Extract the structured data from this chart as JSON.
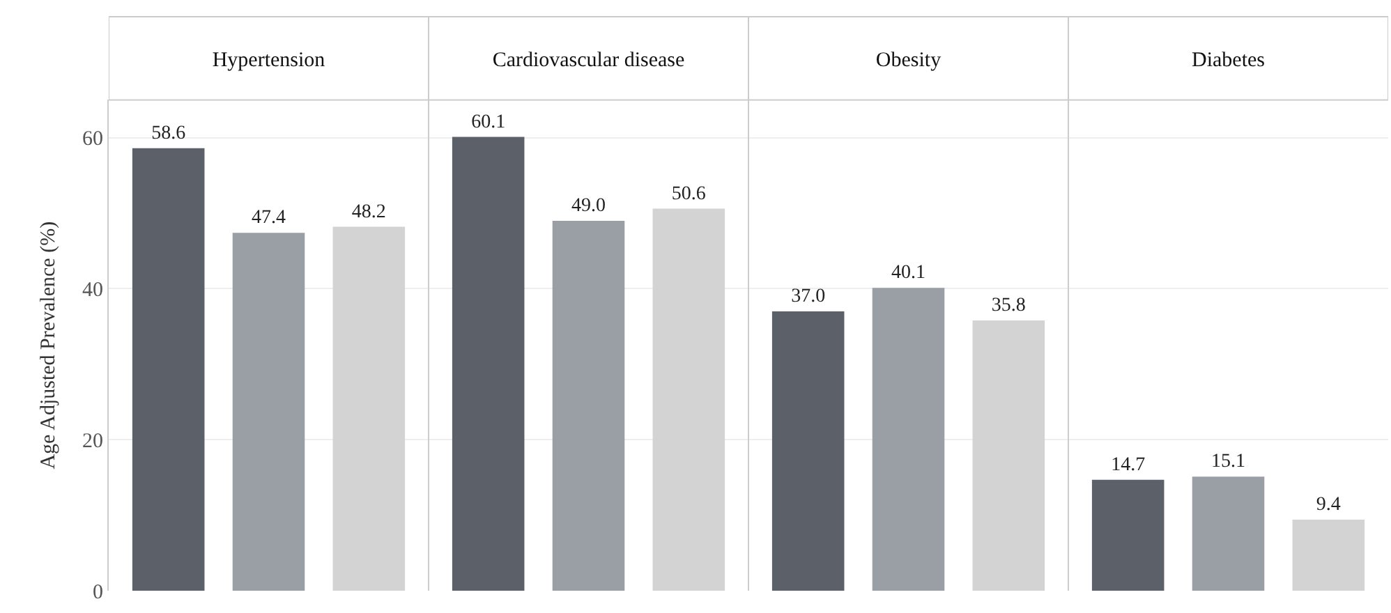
{
  "chart_data": {
    "type": "bar",
    "ylabel": "Age Adjusted Prevalence (%)",
    "categories": [
      "Hypertension",
      "Cardiovascular disease",
      "Obesity",
      "Diabetes"
    ],
    "series": [
      {
        "color": "#5c6069",
        "values": [
          58.6,
          60.1,
          37.0,
          14.7
        ],
        "value_labels": [
          "58.6",
          "60.1",
          "37.0",
          "14.7"
        ]
      },
      {
        "color": "#9a9ea5",
        "values": [
          47.4,
          49.0,
          40.1,
          15.1
        ],
        "value_labels": [
          "47.4",
          "49.0",
          "40.1",
          "15.1"
        ]
      },
      {
        "color": "#d3d3d3",
        "values": [
          48.2,
          50.6,
          35.8,
          9.4
        ],
        "value_labels": [
          "48.2",
          "50.6",
          "35.8",
          "9.4"
        ]
      }
    ],
    "ylim": [
      0,
      65
    ],
    "yticks": [
      0,
      20,
      40,
      60
    ],
    "grid": true
  }
}
